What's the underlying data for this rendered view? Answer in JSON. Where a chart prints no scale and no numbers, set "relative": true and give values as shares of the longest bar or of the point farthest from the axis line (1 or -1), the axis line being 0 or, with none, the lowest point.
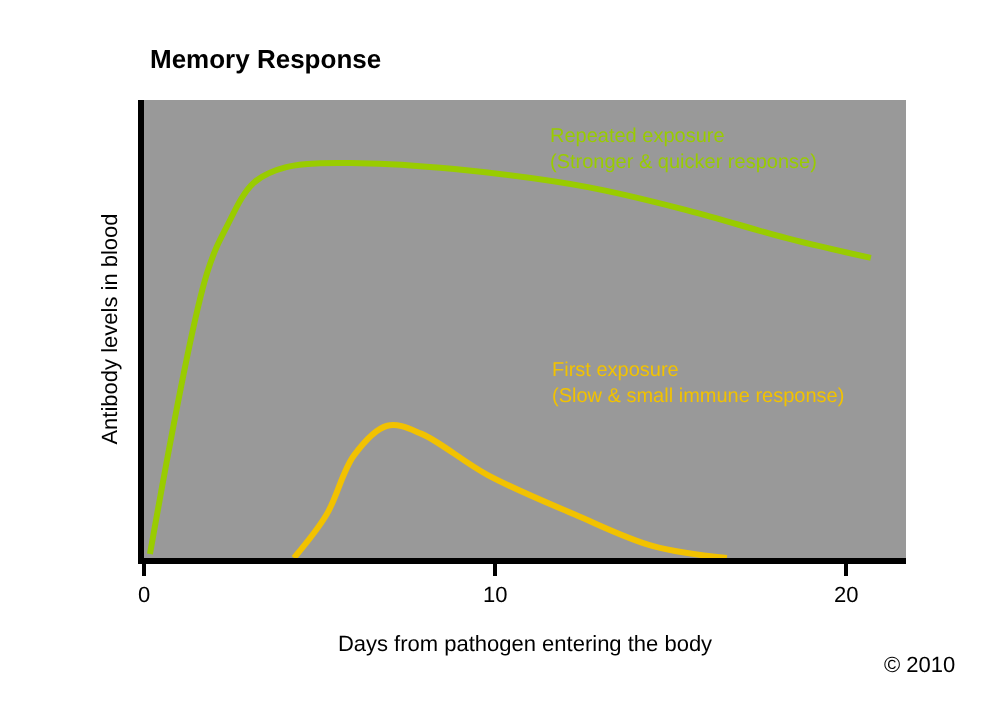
{
  "chart_data": {
    "type": "line",
    "title": "Memory Response",
    "xlabel": "Days from pathogen entering the body",
    "ylabel": "Antibody levels in blood",
    "relative": true,
    "xlim": [
      0,
      21.7
    ],
    "xticks": [
      0,
      10,
      20
    ],
    "grid": false,
    "legend": false,
    "marker": "none",
    "line_style": "solid",
    "series": [
      {
        "name": "Repeated exposure\n(Stronger & quicker response)",
        "color": "#99cc00",
        "x": [
          0.17,
          1.79,
          2.36,
          3.12,
          4.05,
          6.15,
          8.84,
          12.6,
          15.5,
          18.3,
          20.7
        ],
        "values": [
          0.01,
          0.72,
          0.84,
          0.95,
          0.99,
          1.0,
          0.985,
          0.94,
          0.88,
          0.81,
          0.76
        ]
      },
      {
        "name": "First exposure\n(Slow & small immune response)",
        "color": "#f2c200",
        "x": [
          4.27,
          5.2,
          5.98,
          6.93,
          7.89,
          9.79,
          12.27,
          14.5,
          16.6
        ],
        "values": [
          0.0,
          0.11,
          0.26,
          0.335,
          0.315,
          0.21,
          0.11,
          0.03,
          0.0
        ]
      }
    ],
    "annotations": [
      "© 2010"
    ]
  }
}
